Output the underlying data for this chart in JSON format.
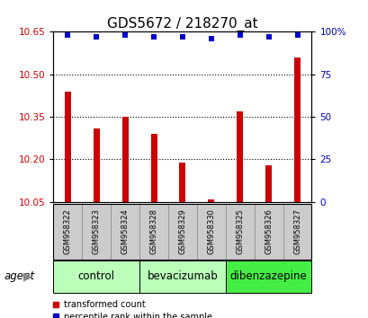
{
  "title": "GDS5672 / 218270_at",
  "samples": [
    "GSM958322",
    "GSM958323",
    "GSM958324",
    "GSM958328",
    "GSM958329",
    "GSM958330",
    "GSM958325",
    "GSM958326",
    "GSM958327"
  ],
  "bar_values": [
    10.44,
    10.31,
    10.35,
    10.29,
    10.19,
    10.06,
    10.37,
    10.18,
    10.56
  ],
  "percentile_values": [
    98,
    97,
    98,
    97,
    97,
    96,
    98,
    97,
    98
  ],
  "ymin": 10.05,
  "ymax": 10.65,
  "yticks": [
    10.05,
    10.2,
    10.35,
    10.5,
    10.65
  ],
  "right_yticks": [
    0,
    25,
    50,
    75,
    100
  ],
  "bar_color": "#cc0000",
  "percentile_color": "#0000cc",
  "groups": [
    {
      "label": "control",
      "start": 0,
      "end": 2,
      "color": "#bbffbb"
    },
    {
      "label": "bevacizumab",
      "start": 3,
      "end": 5,
      "color": "#bbffbb"
    },
    {
      "label": "dibenzazepine",
      "start": 6,
      "end": 8,
      "color": "#44ee44"
    }
  ],
  "agent_label": "agent",
  "legend": [
    {
      "label": "transformed count",
      "color": "#cc0000"
    },
    {
      "label": "percentile rank within the sample",
      "color": "#0000cc"
    }
  ],
  "bg_color": "#ffffff",
  "bar_bg_color": "#cccccc",
  "title_fontsize": 11,
  "tick_fontsize": 7.5,
  "label_fontsize": 8.5
}
